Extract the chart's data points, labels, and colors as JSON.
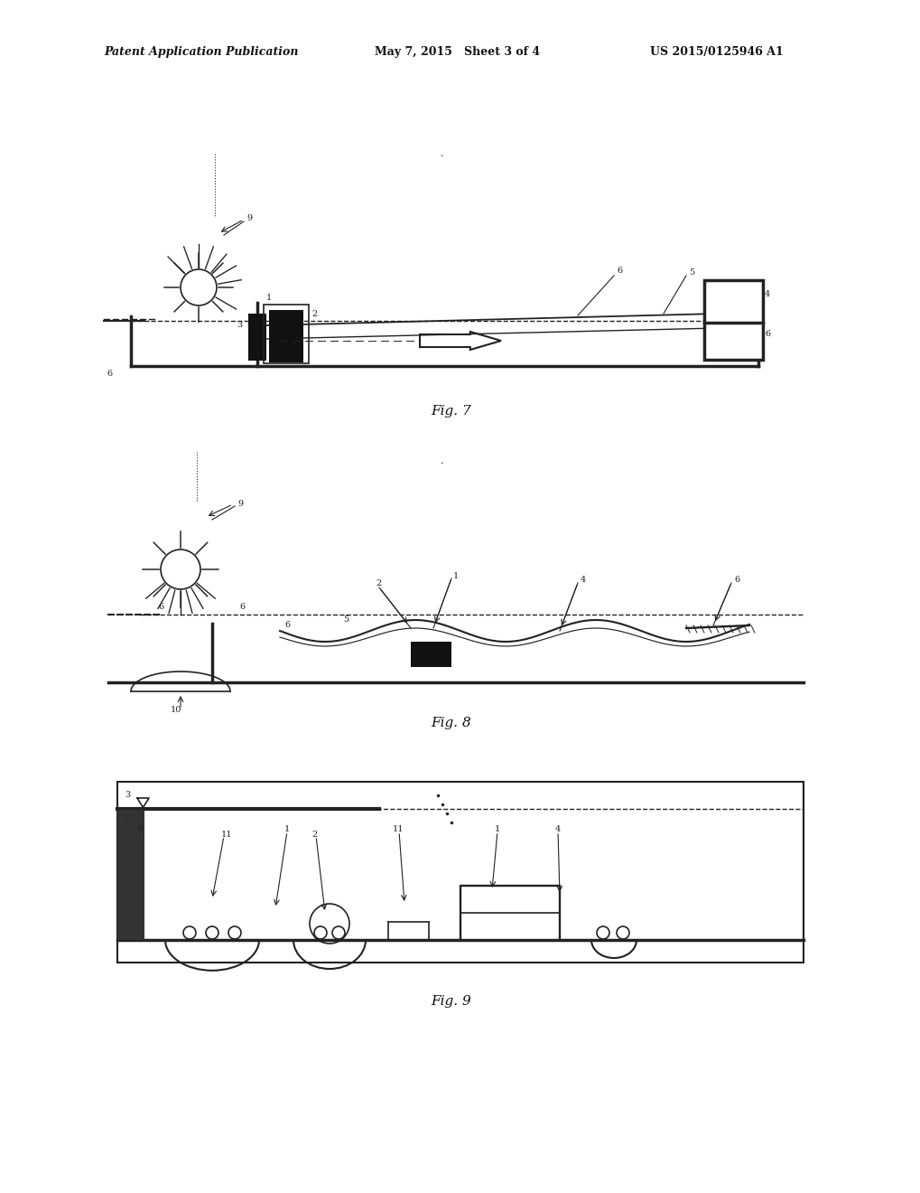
{
  "bg_color": "#ffffff",
  "text_color": "#111111",
  "header_left": "Patent Application Publication",
  "header_center": "May 7, 2015   Sheet 3 of 4",
  "header_right": "US 2015/0125946 A1",
  "fig7_label": "Fig. 7",
  "fig8_label": "Fig. 8",
  "fig9_label": "Fig. 9",
  "lc": "#222222",
  "lw": 1.2,
  "tlw": 2.5
}
